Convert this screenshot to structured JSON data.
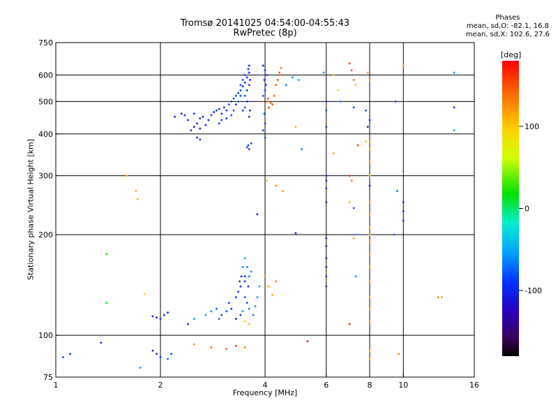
{
  "chart_data": {
    "type": "scatter",
    "title": "Tromsø 20141025 04:54:00-04:55:43",
    "subtitle": "RwPretec (8p)",
    "stats": {
      "header": "Phases",
      "line1": "mean, sd,O: -82.1, 16.8",
      "line2": "mean, sd,X: 102.6, 27.6"
    },
    "xlabel": "Frequency [MHz]",
    "ylabel": "Stationary phase Virtual Height [km]",
    "x_scale": "log",
    "y_scale": "log",
    "xlim": [
      1,
      16
    ],
    "ylim": [
      75,
      750
    ],
    "x_ticks": [
      {
        "value": 1,
        "label": "1"
      },
      {
        "value": 2,
        "label": "2"
      },
      {
        "value": 4,
        "label": "4"
      },
      {
        "value": 6,
        "label": "6"
      },
      {
        "value": 8,
        "label": "8"
      },
      {
        "value": 10,
        "label": "10"
      },
      {
        "value": 16,
        "label": "16"
      }
    ],
    "x_grid": [
      2,
      4,
      6,
      8,
      10
    ],
    "y_ticks": [
      {
        "value": 75,
        "label": "75"
      },
      {
        "value": 100,
        "label": "100"
      },
      {
        "value": 200,
        "label": "200"
      },
      {
        "value": 300,
        "label": "300"
      },
      {
        "value": 400,
        "label": "400"
      },
      {
        "value": 500,
        "label": "500"
      },
      {
        "value": 600,
        "label": "600"
      },
      {
        "value": 750,
        "label": "750"
      }
    ],
    "y_grid": [
      100,
      200,
      300,
      400,
      500,
      600
    ],
    "grid": true,
    "colorbar": {
      "label": "[deg]",
      "range": [
        -180,
        180
      ],
      "ticks": [
        {
          "value": 100,
          "label": "100"
        },
        {
          "value": 0,
          "label": "0"
        },
        {
          "value": -100,
          "label": "-100"
        }
      ]
    },
    "points": [
      [
        2.45,
        410,
        -100
      ],
      [
        2.5,
        420,
        -110
      ],
      [
        2.55,
        430,
        -100
      ],
      [
        2.6,
        445,
        -110
      ],
      [
        2.65,
        450,
        -95
      ],
      [
        2.4,
        440,
        -105
      ],
      [
        2.35,
        455,
        -100
      ],
      [
        2.5,
        460,
        -95
      ],
      [
        2.6,
        415,
        -110
      ],
      [
        2.7,
        425,
        -100
      ],
      [
        2.55,
        390,
        -100
      ],
      [
        2.6,
        385,
        -105
      ],
      [
        2.2,
        450,
        -110
      ],
      [
        2.3,
        460,
        -100
      ],
      [
        2.75,
        440,
        -100
      ],
      [
        2.8,
        455,
        -90
      ],
      [
        2.85,
        465,
        -95
      ],
      [
        2.9,
        470,
        -90
      ],
      [
        2.95,
        475,
        -95
      ],
      [
        3.0,
        460,
        -90
      ],
      [
        3.05,
        480,
        -85
      ],
      [
        3.1,
        470,
        -90
      ],
      [
        3.15,
        490,
        -85
      ],
      [
        3.2,
        500,
        -90
      ],
      [
        3.25,
        510,
        -85
      ],
      [
        3.3,
        520,
        -90
      ],
      [
        3.35,
        530,
        -95
      ],
      [
        3.4,
        540,
        -90
      ],
      [
        3.45,
        555,
        -95
      ],
      [
        3.5,
        570,
        -100
      ],
      [
        3.55,
        590,
        -100
      ],
      [
        3.6,
        610,
        -105
      ],
      [
        3.6,
        640,
        -105
      ],
      [
        3.58,
        625,
        -100
      ],
      [
        3.5,
        600,
        -90
      ],
      [
        3.45,
        580,
        -85
      ],
      [
        3.4,
        560,
        -90
      ],
      [
        3.35,
        500,
        -85
      ],
      [
        3.3,
        490,
        -90
      ],
      [
        3.25,
        470,
        -85
      ],
      [
        3.2,
        455,
        -80
      ],
      [
        3.1,
        445,
        -90
      ],
      [
        3.0,
        440,
        -85
      ],
      [
        2.95,
        430,
        -90
      ],
      [
        3.4,
        520,
        -80
      ],
      [
        3.5,
        520,
        -85
      ],
      [
        3.55,
        540,
        -95
      ],
      [
        3.6,
        560,
        -100
      ],
      [
        3.62,
        580,
        -105
      ],
      [
        3.5,
        480,
        -80
      ],
      [
        3.45,
        470,
        -85
      ],
      [
        3.55,
        500,
        -90
      ],
      [
        3.58,
        370,
        -90
      ],
      [
        3.6,
        360,
        -95
      ],
      [
        3.65,
        375,
        -85
      ],
      [
        3.55,
        365,
        -90
      ],
      [
        3.6,
        450,
        -95
      ],
      [
        3.62,
        470,
        -95
      ],
      [
        3.95,
        640,
        -100
      ],
      [
        4.0,
        620,
        -95
      ],
      [
        4.05,
        600,
        -90
      ],
      [
        3.98,
        580,
        -85
      ],
      [
        4.02,
        560,
        -95
      ],
      [
        4.0,
        540,
        -90
      ],
      [
        3.95,
        520,
        -80
      ],
      [
        4.05,
        500,
        150
      ],
      [
        4.1,
        480,
        160
      ],
      [
        4.15,
        495,
        140
      ],
      [
        4.08,
        510,
        155
      ],
      [
        4.2,
        490,
        150
      ],
      [
        4.25,
        520,
        145
      ],
      [
        4.3,
        560,
        150
      ],
      [
        4.35,
        580,
        155
      ],
      [
        4.4,
        610,
        150
      ],
      [
        4.45,
        630,
        140
      ],
      [
        4.5,
        600,
        150
      ],
      [
        3.98,
        460,
        -85
      ],
      [
        4.0,
        430,
        -90
      ],
      [
        3.95,
        410,
        -80
      ],
      [
        4.0,
        390,
        -85
      ],
      [
        4.6,
        560,
        -70
      ],
      [
        4.8,
        590,
        -60
      ],
      [
        5.0,
        580,
        -50
      ],
      [
        4.9,
        420,
        110
      ],
      [
        5.1,
        360,
        -60
      ],
      [
        4.05,
        290,
        110
      ],
      [
        4.3,
        280,
        130
      ],
      [
        4.5,
        270,
        120
      ],
      [
        3.8,
        230,
        -110
      ],
      [
        4.9,
        202,
        -110
      ],
      [
        1.6,
        300,
        120
      ],
      [
        1.7,
        270,
        110
      ],
      [
        1.72,
        255,
        115
      ],
      [
        1.4,
        175,
        20
      ],
      [
        1.4,
        125,
        20
      ],
      [
        1.8,
        133,
        100
      ],
      [
        3.5,
        170,
        -50
      ],
      [
        3.45,
        160,
        -60
      ],
      [
        3.6,
        150,
        -70
      ],
      [
        3.5,
        145,
        -90
      ],
      [
        3.4,
        140,
        -100
      ],
      [
        3.35,
        135,
        -95
      ],
      [
        3.3,
        130,
        -90
      ],
      [
        3.5,
        130,
        -80
      ],
      [
        3.55,
        125,
        -85
      ],
      [
        3.6,
        120,
        -70
      ],
      [
        3.45,
        118,
        -60
      ],
      [
        3.4,
        115,
        -90
      ],
      [
        3.3,
        112,
        -95
      ],
      [
        3.2,
        120,
        -100
      ],
      [
        3.15,
        125,
        -90
      ],
      [
        3.1,
        118,
        -85
      ],
      [
        3.0,
        115,
        -80
      ],
      [
        2.95,
        112,
        -75
      ],
      [
        3.5,
        110,
        100
      ],
      [
        3.6,
        108,
        110
      ],
      [
        3.7,
        115,
        -70
      ],
      [
        3.75,
        122,
        -60
      ],
      [
        3.8,
        130,
        -50
      ],
      [
        3.85,
        140,
        -40
      ],
      [
        3.65,
        155,
        -55
      ],
      [
        3.55,
        160,
        -65
      ],
      [
        3.5,
        150,
        -95
      ],
      [
        3.42,
        150,
        -100
      ],
      [
        3.38,
        145,
        -90
      ],
      [
        3.58,
        140,
        -105
      ],
      [
        2.9,
        120,
        -75
      ],
      [
        2.8,
        118,
        -60
      ],
      [
        2.7,
        115,
        -50
      ],
      [
        2.5,
        112,
        -55
      ],
      [
        2.4,
        108,
        -110
      ],
      [
        4.0,
        150,
        130
      ],
      [
        4.1,
        140,
        120
      ],
      [
        4.2,
        132,
        110
      ],
      [
        4.3,
        145,
        130
      ],
      [
        1.9,
        114,
        -105
      ],
      [
        1.95,
        113,
        -100
      ],
      [
        2.0,
        112,
        -110
      ],
      [
        2.05,
        115,
        -100
      ],
      [
        2.1,
        117,
        -90
      ],
      [
        1.9,
        90,
        -110
      ],
      [
        1.95,
        88,
        -100
      ],
      [
        2.0,
        86,
        -90
      ],
      [
        2.1,
        85,
        -70
      ],
      [
        2.15,
        88,
        -80
      ],
      [
        1.75,
        80,
        -60
      ],
      [
        1.05,
        86,
        -80
      ],
      [
        1.1,
        88,
        -90
      ],
      [
        1.35,
        95,
        -100
      ],
      [
        2.5,
        94,
        120
      ],
      [
        2.8,
        92,
        140
      ],
      [
        3.1,
        91,
        150
      ],
      [
        3.3,
        93,
        160
      ],
      [
        3.5,
        92,
        130
      ],
      [
        5.3,
        96,
        170
      ],
      [
        5.9,
        610,
        -60
      ],
      [
        6.0,
        500,
        -100
      ],
      [
        6.0,
        470,
        -90
      ],
      [
        6.0,
        420,
        -95
      ],
      [
        6.0,
        300,
        -110
      ],
      [
        6.0,
        290,
        -120
      ],
      [
        6.0,
        275,
        -100
      ],
      [
        6.0,
        250,
        -110
      ],
      [
        6.0,
        195,
        -100
      ],
      [
        6.0,
        185,
        -110
      ],
      [
        6.0,
        170,
        -120
      ],
      [
        6.0,
        160,
        -115
      ],
      [
        6.0,
        150,
        -100
      ],
      [
        6.0,
        140,
        -110
      ],
      [
        6.3,
        600,
        110
      ],
      [
        6.5,
        540,
        90
      ],
      [
        6.6,
        500,
        -70
      ],
      [
        6.3,
        350,
        110
      ],
      [
        7.0,
        650,
        160
      ],
      [
        7.1,
        620,
        150
      ],
      [
        7.2,
        580,
        140
      ],
      [
        7.3,
        560,
        110
      ],
      [
        7.2,
        480,
        -80
      ],
      [
        7.4,
        370,
        160
      ],
      [
        7.0,
        300,
        170
      ],
      [
        7.1,
        290,
        140
      ],
      [
        7.0,
        250,
        110
      ],
      [
        7.2,
        240,
        -80
      ],
      [
        7.3,
        200,
        -60
      ],
      [
        7.2,
        195,
        120
      ],
      [
        7.3,
        150,
        -60
      ],
      [
        7.0,
        108,
        170
      ],
      [
        7.9,
        610,
        110
      ],
      [
        8.0,
        580,
        120
      ],
      [
        7.8,
        470,
        -80
      ],
      [
        8.0,
        440,
        -90
      ],
      [
        7.9,
        420,
        -100
      ],
      [
        8.0,
        380,
        120
      ],
      [
        8.0,
        360,
        110
      ],
      [
        8.0,
        330,
        120
      ],
      [
        8.0,
        300,
        110
      ],
      [
        8.0,
        280,
        -110
      ],
      [
        8.0,
        250,
        120
      ],
      [
        8.0,
        230,
        120
      ],
      [
        8.0,
        210,
        110
      ],
      [
        8.0,
        190,
        120
      ],
      [
        8.0,
        175,
        120
      ],
      [
        8.0,
        160,
        110
      ],
      [
        8.0,
        145,
        120
      ],
      [
        8.0,
        130,
        115
      ],
      [
        8.0,
        120,
        120
      ],
      [
        8.0,
        110,
        120
      ],
      [
        8.0,
        90,
        110
      ],
      [
        8.0,
        85,
        120
      ],
      [
        7.8,
        380,
        100
      ],
      [
        8.0,
        200,
        110
      ],
      [
        9.5,
        500,
        -100
      ],
      [
        9.6,
        270,
        -70
      ],
      [
        9.4,
        200,
        -80
      ],
      [
        9.7,
        88,
        120
      ],
      [
        10.0,
        640,
        110
      ],
      [
        10.0,
        250,
        -100
      ],
      [
        10.0,
        235,
        -110
      ],
      [
        10.0,
        220,
        -90
      ],
      [
        12.6,
        130,
        130
      ],
      [
        12.9,
        130,
        120
      ],
      [
        14.0,
        610,
        -60
      ],
      [
        14.0,
        480,
        -110
      ],
      [
        14.0,
        410,
        -50
      ]
    ]
  }
}
